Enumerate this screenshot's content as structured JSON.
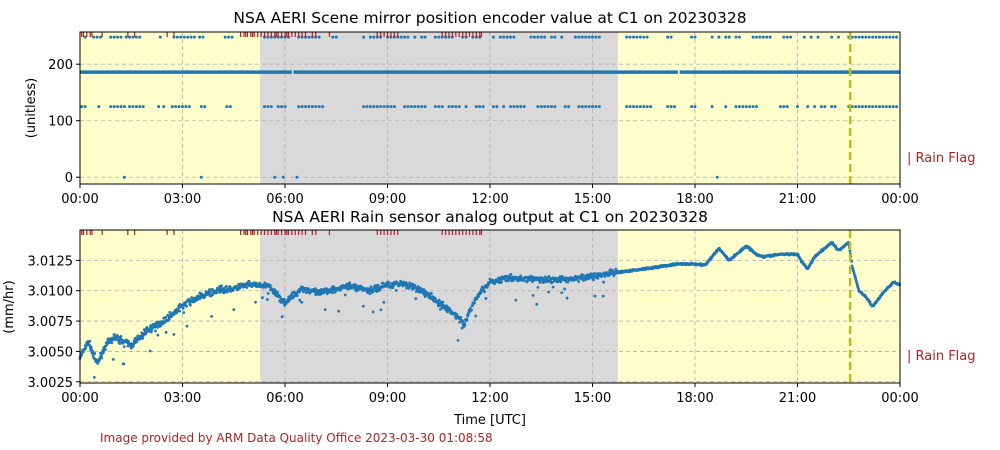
{
  "colors": {
    "series": "#1f77b4",
    "flag": "#b22222",
    "day": "#ffffcc",
    "night": "#d9d9d9",
    "marker": "#bcbd22",
    "credit": "#b22222"
  },
  "credit": "Image provided by ARM Data Quality Office 2023-03-30 01:08:58",
  "chart_data": [
    {
      "type": "scatter",
      "title": "NSA AERI Scene mirror position encoder value at C1 on 20230328",
      "ylabel": "(unitless)",
      "xlabel": "",
      "xlim": [
        0,
        24
      ],
      "ylim": [
        -12,
        257
      ],
      "xticks": [
        "00:00",
        "03:00",
        "06:00",
        "09:00",
        "12:00",
        "15:00",
        "18:00",
        "21:00",
        "00:00"
      ],
      "yticks": [
        0,
        100,
        200
      ],
      "grid": true,
      "flag_label": "| Rain Flag",
      "shading": [
        {
          "from": 0,
          "to": 5.27,
          "kind": "day"
        },
        {
          "from": 5.27,
          "to": 15.75,
          "kind": "night"
        },
        {
          "from": 15.75,
          "to": 24,
          "kind": "day"
        }
      ],
      "vline_hour": 22.54,
      "constant_series": {
        "value": 186,
        "gaps": [
          6.2,
          17.5
        ]
      },
      "series_high": {
        "value": 248,
        "hours": [
          0.15,
          0.4,
          0.5,
          0.6,
          0.9,
          1.0,
          1.1,
          1.2,
          1.35,
          1.45,
          1.55,
          1.65,
          1.75,
          2.35,
          2.75,
          2.85,
          2.95,
          3.05,
          3.15,
          3.25,
          3.35,
          3.5,
          3.6,
          4.25,
          4.35,
          4.45,
          5.4,
          5.5,
          5.6,
          5.7,
          5.8,
          5.9,
          6.0,
          6.1,
          6.4,
          6.5,
          6.6,
          6.7,
          6.8,
          6.9,
          7.0,
          7.4,
          7.5,
          8.3,
          8.5,
          8.6,
          8.7,
          8.8,
          9.0,
          9.1,
          9.2,
          9.3,
          9.4,
          9.5,
          9.6,
          9.8,
          10.0,
          10.1,
          10.4,
          10.5,
          10.6,
          10.7,
          10.8,
          10.9,
          11.2,
          11.3,
          11.5,
          11.6,
          11.7,
          12.1,
          12.3,
          12.4,
          12.5,
          12.6,
          12.7,
          13.2,
          13.3,
          13.4,
          13.5,
          13.6,
          13.8,
          13.9,
          14.1,
          14.5,
          14.6,
          14.7,
          14.8,
          14.9,
          15.0,
          15.1,
          15.2,
          16.0,
          16.1,
          16.2,
          16.3,
          16.4,
          16.5,
          16.6,
          17.2,
          17.3,
          17.9,
          18.0,
          18.5,
          18.7,
          18.9,
          19.0,
          19.2,
          19.3,
          19.7,
          19.8,
          19.9,
          20.0,
          20.1,
          20.2,
          20.6,
          20.7,
          20.8,
          21.2,
          21.4,
          21.6,
          22.0,
          22.2,
          22.5,
          22.6,
          22.7,
          22.8,
          22.9,
          23.0,
          23.1,
          23.2,
          23.3,
          23.4,
          23.5,
          23.6,
          23.7,
          23.8,
          23.9
        ]
      },
      "series_mid": {
        "value": 125,
        "hours": [
          0.05,
          0.15,
          0.55,
          0.9,
          1.0,
          1.1,
          1.2,
          1.3,
          1.45,
          1.55,
          1.65,
          1.75,
          1.85,
          2.3,
          2.45,
          2.7,
          2.8,
          2.9,
          3.0,
          3.1,
          3.2,
          3.55,
          3.65,
          4.3,
          4.4,
          5.4,
          5.5,
          5.6,
          5.8,
          5.9,
          6.0,
          6.4,
          6.5,
          6.6,
          6.7,
          6.8,
          6.9,
          7.0,
          7.1,
          8.3,
          8.4,
          8.5,
          8.6,
          8.7,
          8.8,
          8.9,
          9.0,
          9.1,
          9.2,
          9.5,
          9.6,
          9.7,
          9.8,
          9.9,
          10.0,
          10.1,
          10.4,
          10.5,
          10.6,
          10.8,
          10.9,
          11.0,
          11.1,
          11.3,
          11.6,
          11.7,
          11.8,
          12.1,
          12.2,
          12.4,
          12.6,
          12.7,
          12.8,
          12.9,
          13.0,
          13.4,
          13.5,
          13.6,
          13.7,
          13.8,
          13.9,
          14.2,
          14.3,
          14.6,
          14.7,
          14.8,
          14.9,
          15.0,
          15.1,
          15.2,
          16.0,
          16.1,
          16.2,
          16.3,
          16.4,
          16.5,
          16.6,
          16.7,
          17.2,
          17.3,
          17.4,
          17.9,
          18.0,
          18.5,
          18.9,
          19.2,
          19.3,
          19.4,
          19.5,
          19.6,
          19.7,
          19.8,
          20.5,
          20.6,
          20.7,
          21.0,
          21.3,
          21.5,
          21.7,
          21.8,
          22.0,
          22.1,
          22.5,
          22.6,
          22.7,
          22.8,
          22.9,
          23.0,
          23.1,
          23.2,
          23.3,
          23.4,
          23.5,
          23.6,
          23.7,
          23.8,
          23.9
        ]
      },
      "series_zero": {
        "value": 0,
        "hours": [
          1.3,
          3.55,
          5.7,
          5.95,
          6.35,
          18.65
        ]
      },
      "rain_flag_hours": [
        0.05,
        0.1,
        0.2,
        0.3,
        0.35,
        0.65,
        1.4,
        1.6,
        2.55,
        2.75,
        4.7,
        4.8,
        4.85,
        4.9,
        5.0,
        5.05,
        5.1,
        5.2,
        5.3,
        5.4,
        5.5,
        5.6,
        5.7,
        5.75,
        5.8,
        5.9,
        6.0,
        6.05,
        6.1,
        6.2,
        6.3,
        6.4,
        6.5,
        6.6,
        6.8,
        6.9,
        7.3,
        8.7,
        8.8,
        8.9,
        9.0,
        9.1,
        9.2,
        9.3,
        10.6,
        10.7,
        10.8,
        10.9,
        11.0,
        11.1,
        11.2,
        11.3,
        11.4,
        11.5,
        11.6,
        11.7,
        11.75
      ]
    },
    {
      "type": "scatter",
      "title": "NSA AERI Rain sensor analog output at C1 on 20230328",
      "ylabel": "(mm/hr)",
      "xlabel": "Time [UTC]",
      "xlim": [
        0,
        24
      ],
      "ylim": [
        3.0024,
        3.015
      ],
      "xticks": [
        "00:00",
        "03:00",
        "06:00",
        "09:00",
        "12:00",
        "15:00",
        "18:00",
        "21:00",
        "00:00"
      ],
      "yticks": [
        "3.0025",
        "3.0050",
        "3.0075",
        "3.0100",
        "3.0125"
      ],
      "grid": true,
      "flag_label": "| Rain Flag",
      "shading": [
        {
          "from": 0,
          "to": 5.27,
          "kind": "day"
        },
        {
          "from": 5.27,
          "to": 15.75,
          "kind": "night"
        },
        {
          "from": 15.75,
          "to": 24,
          "kind": "day"
        }
      ],
      "vline_hour": 22.54,
      "trend": {
        "hours": [
          0,
          0.25,
          0.5,
          0.75,
          1.0,
          1.5,
          2.0,
          2.5,
          3.0,
          3.5,
          4.0,
          4.5,
          5.0,
          5.5,
          6.0,
          6.5,
          7.0,
          7.5,
          8.0,
          8.5,
          9.0,
          9.5,
          10.0,
          10.5,
          11.0,
          11.25,
          11.5,
          12.0,
          12.5,
          13,
          13.5,
          14,
          14.5,
          15,
          15.5,
          16,
          16.5,
          17,
          17.5,
          18,
          18.3,
          18.7,
          19.0,
          19.3,
          19.5,
          19.8,
          20.0,
          20.5,
          21.0,
          21.1,
          21.3,
          21.5,
          21.8,
          22.0,
          22.2,
          22.5,
          22.6,
          22.8,
          23.0,
          23.2,
          23.5,
          23.8,
          24
        ],
        "values": [
          3.0045,
          3.0058,
          3.004,
          3.0055,
          3.0062,
          3.0055,
          3.0068,
          3.0076,
          3.0088,
          3.0095,
          3.01,
          3.0102,
          3.0105,
          3.0104,
          3.009,
          3.0102,
          3.0098,
          3.0102,
          3.0104,
          3.01,
          3.0105,
          3.0106,
          3.01,
          3.009,
          3.008,
          3.0072,
          3.009,
          3.0108,
          3.011,
          3.011,
          3.0109,
          3.0109,
          3.011,
          3.0112,
          3.0114,
          3.0116,
          3.0118,
          3.012,
          3.0122,
          3.0122,
          3.0121,
          3.0135,
          3.0125,
          3.0132,
          3.0137,
          3.013,
          3.0128,
          3.013,
          3.013,
          3.0125,
          3.0118,
          3.0128,
          3.0135,
          3.014,
          3.0133,
          3.014,
          3.012,
          3.01,
          3.0095,
          3.0087,
          3.0098,
          3.0107,
          3.0105
        ]
      },
      "rain_flag_hours": [
        0.05,
        0.1,
        0.2,
        0.3,
        0.35,
        0.65,
        1.4,
        1.6,
        2.55,
        2.75,
        4.7,
        4.8,
        4.85,
        4.9,
        5.0,
        5.05,
        5.1,
        5.2,
        5.3,
        5.4,
        5.5,
        5.6,
        5.7,
        5.75,
        5.8,
        5.9,
        6.0,
        6.05,
        6.1,
        6.2,
        6.3,
        6.4,
        6.5,
        6.6,
        6.8,
        6.9,
        7.3,
        8.7,
        8.8,
        8.9,
        9.0,
        9.1,
        9.2,
        9.3,
        10.6,
        10.7,
        10.8,
        10.9,
        11.0,
        11.1,
        11.2,
        11.3,
        11.4,
        11.5,
        11.6,
        11.7,
        11.75
      ]
    }
  ]
}
